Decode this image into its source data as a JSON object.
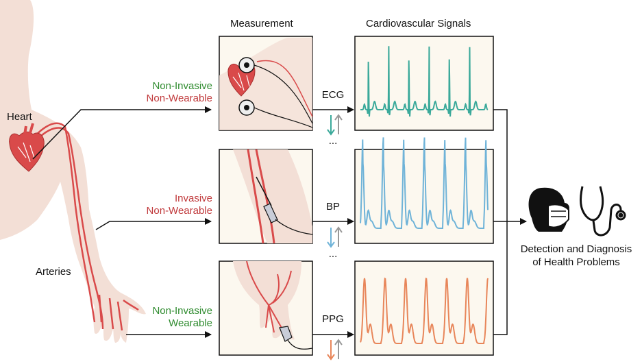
{
  "headers": {
    "measurement": "Measurement",
    "signals": "Cardiovascular Signals"
  },
  "body_labels": {
    "heart": "Heart",
    "arteries": "Arteries"
  },
  "rows": [
    {
      "line1": "Non-Invasive",
      "line2": "Non-Wearable",
      "line1_color": "#2e8b2e",
      "line2_color": "#c0393b",
      "signal": "ECG",
      "signal_color": "#3aa99a"
    },
    {
      "line1": "Invasive",
      "line2": "Non-Wearable",
      "line1_color": "#c0393b",
      "line2_color": "#c0393b",
      "signal": "BP",
      "signal_color": "#6fb3d8"
    },
    {
      "line1": "Non-Invasive",
      "line2": "Wearable",
      "line1_color": "#2e8b2e",
      "line2_color": "#2e8b2e",
      "signal": "PPG",
      "signal_color": "#e8865a"
    }
  ],
  "ellipsis": "...",
  "output": {
    "line1": "Detection and Diagnosis",
    "line2": "of Health Problems",
    "icons": [
      "masked-doctor-icon",
      "stethoscope-icon"
    ]
  },
  "colors": {
    "body": "#f3dfd6",
    "artery": "#d94a4a",
    "panel_bg": "#fcf8ef",
    "arrow_gray": "#999999"
  }
}
